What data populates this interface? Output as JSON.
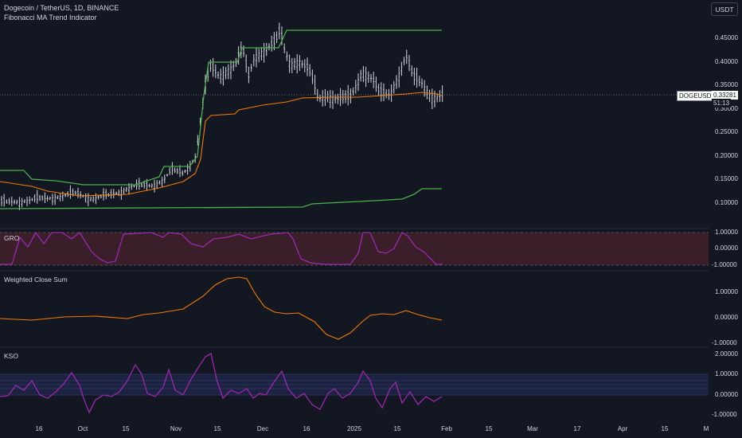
{
  "header": {
    "title": "Dogecoin / TetherUS, 1D, BINANCE",
    "indicator": "Fibonacci MA Trend Indicator",
    "currency_button": "USDT"
  },
  "price_panel": {
    "symbol_tag": "DOGEUSDT",
    "last_price": "0.33281",
    "countdown": "51:13",
    "ticks": [
      "0.45000",
      "0.40000",
      "0.35000",
      "0.30000",
      "0.25000",
      "0.20000",
      "0.15000",
      "0.10000"
    ]
  },
  "gro_panel": {
    "label": "GRO",
    "ticks": [
      "1.00000",
      "0.00000",
      "-1.00000"
    ]
  },
  "wcs_panel": {
    "label": "Weighted Close Sum",
    "ticks": [
      "1.00000",
      "0.00000",
      "-1.00000"
    ]
  },
  "kso_panel": {
    "label": "KSO",
    "ticks": [
      "2.00000",
      "1.00000",
      "0.00000",
      "-1.00000"
    ]
  },
  "time_axis": {
    "labels": [
      "16",
      "Oct",
      "15",
      "Nov",
      "15",
      "Dec",
      "16",
      "2025",
      "15",
      "Feb",
      "15",
      "Mar",
      "17",
      "Apr",
      "15",
      "M"
    ]
  },
  "colors": {
    "background": "#131722",
    "upper_band": "#4caf50",
    "fib_ma": "#f57c00",
    "oscillator": "#9c27b0",
    "candles": "#d1d4dc"
  }
}
